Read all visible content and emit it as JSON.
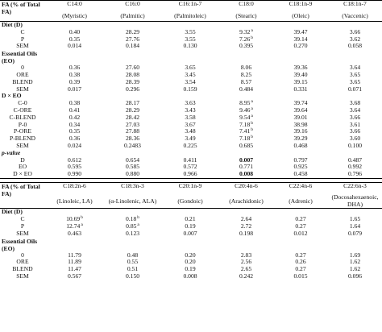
{
  "table1": {
    "header_label": "FA (% of Total FA)",
    "columns": [
      {
        "code": "C14:0",
        "name": "(Myristic)"
      },
      {
        "code": "C16:0",
        "name": "(Palmitic)"
      },
      {
        "code": "C16:1n-7",
        "name": "(Palmitoleic)"
      },
      {
        "code": "C18:0",
        "name": "(Stearic)"
      },
      {
        "code": "C18:1n-9",
        "name": "(Oleic)"
      },
      {
        "code": "C18:1n-7",
        "name": "(Vaccenic)"
      }
    ],
    "rows": [
      {
        "label": "Diet (D)",
        "kind": "section",
        "cells": []
      },
      {
        "label": "C",
        "kind": "data",
        "cells": [
          {
            "v": "0.40"
          },
          {
            "v": "28.29"
          },
          {
            "v": "3.55"
          },
          {
            "v": "9.32",
            "sup": "a"
          },
          {
            "v": "39.47"
          },
          {
            "v": "3.66"
          }
        ]
      },
      {
        "label": "P",
        "kind": "data",
        "cells": [
          {
            "v": "0.35"
          },
          {
            "v": "27.76"
          },
          {
            "v": "3.55"
          },
          {
            "v": "7.26",
            "sup": "b"
          },
          {
            "v": "39.14"
          },
          {
            "v": "3.62"
          }
        ]
      },
      {
        "label": "SEM",
        "kind": "data",
        "cells": [
          {
            "v": "0.014"
          },
          {
            "v": "0.184"
          },
          {
            "v": "0.130"
          },
          {
            "v": "0.395"
          },
          {
            "v": "0.270"
          },
          {
            "v": "0.058"
          }
        ]
      },
      {
        "label": "Essential Oils (EO)",
        "kind": "section-wrap",
        "cells": []
      },
      {
        "label": "0",
        "kind": "data",
        "cells": [
          {
            "v": "0.36"
          },
          {
            "v": "27.60"
          },
          {
            "v": "3.65"
          },
          {
            "v": "8.06"
          },
          {
            "v": "39.36"
          },
          {
            "v": "3.64"
          }
        ]
      },
      {
        "label": "ORE",
        "kind": "data",
        "cells": [
          {
            "v": "0.38"
          },
          {
            "v": "28.08"
          },
          {
            "v": "3.45"
          },
          {
            "v": "8.25"
          },
          {
            "v": "39.40"
          },
          {
            "v": "3.65"
          }
        ]
      },
      {
        "label": "BLEND",
        "kind": "data",
        "cells": [
          {
            "v": "0.39"
          },
          {
            "v": "28.39"
          },
          {
            "v": "3.54"
          },
          {
            "v": "8.57"
          },
          {
            "v": "39.15"
          },
          {
            "v": "3.65"
          }
        ]
      },
      {
        "label": "SEM",
        "kind": "data",
        "cells": [
          {
            "v": "0.017"
          },
          {
            "v": "0.296"
          },
          {
            "v": "0.159"
          },
          {
            "v": "0.484"
          },
          {
            "v": "0.331"
          },
          {
            "v": "0.071"
          }
        ]
      },
      {
        "label": "D × EO",
        "kind": "section",
        "cells": []
      },
      {
        "label": "C-0",
        "kind": "data",
        "cells": [
          {
            "v": "0.38"
          },
          {
            "v": "28.17"
          },
          {
            "v": "3.63"
          },
          {
            "v": "8.95",
            "sup": "a"
          },
          {
            "v": "39.74"
          },
          {
            "v": "3.68"
          }
        ]
      },
      {
        "label": "C-ORE",
        "kind": "data",
        "cells": [
          {
            "v": "0.41"
          },
          {
            "v": "28.29"
          },
          {
            "v": "3.43"
          },
          {
            "v": "9.46",
            "sup": "a"
          },
          {
            "v": "39.64"
          },
          {
            "v": "3.64"
          }
        ]
      },
      {
        "label": "C-BLEND",
        "kind": "data",
        "cells": [
          {
            "v": "0.42"
          },
          {
            "v": "28.42"
          },
          {
            "v": "3.58"
          },
          {
            "v": "9.54",
            "sup": "a"
          },
          {
            "v": "39.01"
          },
          {
            "v": "3.66"
          }
        ]
      },
      {
        "label": "P-0",
        "kind": "data",
        "cells": [
          {
            "v": "0.34"
          },
          {
            "v": "27.03"
          },
          {
            "v": "3.67"
          },
          {
            "v": "7.18",
            "sup": "b"
          },
          {
            "v": "38.98"
          },
          {
            "v": "3.61"
          }
        ]
      },
      {
        "label": "P-ORE",
        "kind": "data",
        "cells": [
          {
            "v": "0.35"
          },
          {
            "v": "27.88"
          },
          {
            "v": "3.48"
          },
          {
            "v": "7.41",
            "sup": "b"
          },
          {
            "v": "39.16"
          },
          {
            "v": "3.66"
          }
        ]
      },
      {
        "label": "P-BLEND",
        "kind": "data",
        "cells": [
          {
            "v": "0.36"
          },
          {
            "v": "28.36"
          },
          {
            "v": "3.49"
          },
          {
            "v": "7.18",
            "sup": "b"
          },
          {
            "v": "39.29"
          },
          {
            "v": "3.60"
          }
        ]
      },
      {
        "label": "SEM",
        "kind": "data",
        "cells": [
          {
            "v": "0.024"
          },
          {
            "v": "0.2483"
          },
          {
            "v": "0.225"
          },
          {
            "v": "0.685"
          },
          {
            "v": "0.468"
          },
          {
            "v": "0.100"
          }
        ]
      },
      {
        "label": "p-value",
        "kind": "section-italic",
        "cells": []
      },
      {
        "label": "D",
        "kind": "data",
        "cells": [
          {
            "v": "0.612"
          },
          {
            "v": "0.654"
          },
          {
            "v": "0.411"
          },
          {
            "v": "0.007",
            "bold": true
          },
          {
            "v": "0.797"
          },
          {
            "v": "0.487"
          }
        ]
      },
      {
        "label": "EO",
        "kind": "data",
        "cells": [
          {
            "v": "0.595"
          },
          {
            "v": "0.585"
          },
          {
            "v": "0.572"
          },
          {
            "v": "0.771"
          },
          {
            "v": "0.925"
          },
          {
            "v": "0.992"
          }
        ]
      },
      {
        "label": "D × EO",
        "kind": "data",
        "cells": [
          {
            "v": "0.990"
          },
          {
            "v": "0.880"
          },
          {
            "v": "0.966"
          },
          {
            "v": "0.008",
            "bold": true
          },
          {
            "v": "0.458"
          },
          {
            "v": "0.796"
          }
        ]
      }
    ]
  },
  "table2": {
    "header_label": "FA (% of Total FA)",
    "columns": [
      {
        "code": "C18:2n-6",
        "name": "(Linoleic, LA)"
      },
      {
        "code": "C18:3n-3",
        "name": "(α-Linolenic, ALA)"
      },
      {
        "code": "C20:1n-9",
        "name": "(Gondoic)"
      },
      {
        "code": "C20:4n-6",
        "name": "(Arachidonic)"
      },
      {
        "code": "C22:4n-6",
        "name": "(Adrenic)"
      },
      {
        "code": "C22:6n-3",
        "name": "(Docosahexaenoic, DHA)"
      }
    ],
    "rows": [
      {
        "label": "Diet (D)",
        "kind": "section",
        "cells": []
      },
      {
        "label": "C",
        "kind": "data",
        "cells": [
          {
            "v": "10.69",
            "sup": "b"
          },
          {
            "v": "0.18",
            "sup": "b"
          },
          {
            "v": "0.21"
          },
          {
            "v": "2.64"
          },
          {
            "v": "0.27"
          },
          {
            "v": "1.65"
          }
        ]
      },
      {
        "label": "P",
        "kind": "data",
        "cells": [
          {
            "v": "12.74",
            "sup": "a"
          },
          {
            "v": "0.85",
            "sup": "a"
          },
          {
            "v": "0.19"
          },
          {
            "v": "2.72"
          },
          {
            "v": "0.27"
          },
          {
            "v": "1.64"
          }
        ]
      },
      {
        "label": "SEM",
        "kind": "data",
        "cells": [
          {
            "v": "0.463"
          },
          {
            "v": "0.123"
          },
          {
            "v": "0.007"
          },
          {
            "v": "0.198"
          },
          {
            "v": "0.012"
          },
          {
            "v": "0.079"
          }
        ]
      },
      {
        "label": "Essential Oils (EO)",
        "kind": "section-wrap",
        "cells": []
      },
      {
        "label": "0",
        "kind": "data",
        "cells": [
          {
            "v": "11.79"
          },
          {
            "v": "0.48"
          },
          {
            "v": "0.20"
          },
          {
            "v": "2.83"
          },
          {
            "v": "0.27"
          },
          {
            "v": "1.69"
          }
        ]
      },
      {
        "label": "ORE",
        "kind": "data",
        "cells": [
          {
            "v": "11.89"
          },
          {
            "v": "0.55"
          },
          {
            "v": "0.20"
          },
          {
            "v": "2.56"
          },
          {
            "v": "0.26"
          },
          {
            "v": "1.62"
          }
        ]
      },
      {
        "label": "BLEND",
        "kind": "data",
        "cells": [
          {
            "v": "11.47"
          },
          {
            "v": "0.51"
          },
          {
            "v": "0.19"
          },
          {
            "v": "2.65"
          },
          {
            "v": "0.27"
          },
          {
            "v": "1.62"
          }
        ]
      },
      {
        "label": "SEM",
        "kind": "data",
        "cells": [
          {
            "v": "0.567"
          },
          {
            "v": "0.150"
          },
          {
            "v": "0.008"
          },
          {
            "v": "0.242"
          },
          {
            "v": "0.015"
          },
          {
            "v": "0.096"
          }
        ]
      }
    ]
  }
}
